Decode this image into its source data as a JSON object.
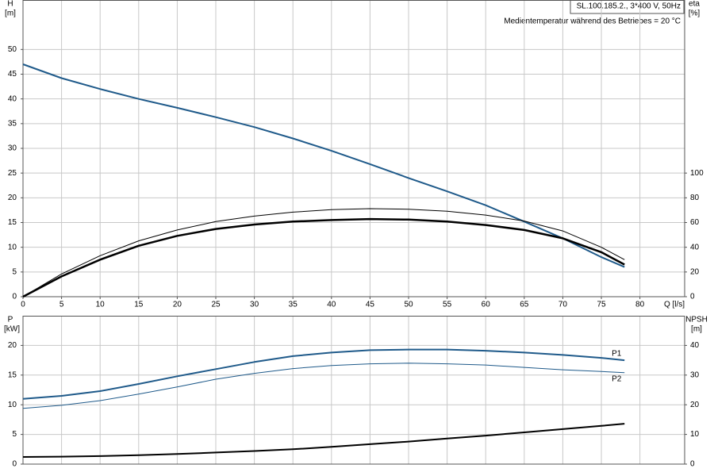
{
  "chart_data": [
    {
      "type": "line",
      "title": "SL.100.185.2., 3*400 V, 50Hz",
      "subtitle": "Medientemperatur während des Betriebes = 20 °C",
      "xlabel": "Q [l/s]",
      "ylabel": "H",
      "yunit": "[m]",
      "y2label": "eta",
      "y2unit": "[%]",
      "x": [
        0,
        5,
        10,
        15,
        20,
        25,
        30,
        35,
        40,
        45,
        50,
        55,
        60,
        65,
        70,
        75,
        78
      ],
      "xlim": [
        0,
        85.8
      ],
      "xticks": [
        0,
        5,
        10,
        15,
        20,
        25,
        30,
        35,
        40,
        45,
        50,
        55,
        60,
        65,
        70,
        75,
        80
      ],
      "ylim": [
        0,
        60
      ],
      "yticks": [
        0,
        5,
        10,
        15,
        20,
        25,
        30,
        35,
        40,
        45,
        50
      ],
      "y2lim": [
        0,
        240
      ],
      "y2ticks": [
        0,
        20,
        40,
        60,
        80,
        100
      ],
      "grid": true,
      "series": [
        {
          "color": "#1f5a8a",
          "line_width": 2,
          "values": [
            47,
            44.2,
            42,
            40,
            38.2,
            36.3,
            34.3,
            32,
            29.5,
            26.8,
            24,
            21.3,
            18.5,
            15.2,
            11.8,
            8,
            6
          ]
        },
        {
          "color": "#000000",
          "line_width": 1,
          "axis": "y2",
          "values": [
            0,
            18.4,
            33.2,
            45.2,
            54,
            60.8,
            65.2,
            68.4,
            70.4,
            71.2,
            70.8,
            69.2,
            66,
            61.2,
            53.2,
            40,
            30
          ]
        },
        {
          "color": "#000000",
          "line_width": 2.5,
          "axis": "y2",
          "values": [
            0,
            16.4,
            30,
            41.2,
            49.2,
            54.8,
            58.4,
            60.8,
            62,
            62.8,
            62.4,
            60.8,
            58,
            54,
            47.2,
            36,
            26
          ]
        }
      ]
    },
    {
      "type": "line",
      "ylabel": "P",
      "yunit": "[kW]",
      "y2label": "NPSH",
      "y2unit": "[m]",
      "x": [
        0,
        5,
        10,
        15,
        20,
        25,
        30,
        35,
        40,
        45,
        50,
        55,
        60,
        65,
        70,
        75,
        78
      ],
      "xlim": [
        0,
        85.8
      ],
      "xticks": [
        0,
        5,
        10,
        15,
        20,
        25,
        30,
        35,
        40,
        45,
        50,
        55,
        60,
        65,
        70,
        75,
        80
      ],
      "ylim": [
        0,
        25
      ],
      "yticks": [
        0,
        5,
        10,
        15,
        20
      ],
      "y2lim": [
        0,
        50
      ],
      "y2ticks": [
        0,
        10,
        20,
        30,
        40
      ],
      "grid": true,
      "series": [
        {
          "name": "P1",
          "color": "#1f5a8a",
          "line_width": 2,
          "values": [
            11,
            11.5,
            12.3,
            13.5,
            14.8,
            16,
            17.2,
            18.2,
            18.8,
            19.2,
            19.3,
            19.3,
            19.1,
            18.8,
            18.4,
            17.9,
            17.5
          ]
        },
        {
          "name": "P2",
          "color": "#1f5a8a",
          "line_width": 1,
          "values": [
            9.4,
            9.9,
            10.7,
            11.8,
            13,
            14.3,
            15.3,
            16.1,
            16.6,
            16.9,
            17.0,
            16.9,
            16.7,
            16.3,
            15.9,
            15.6,
            15.4
          ]
        },
        {
          "color": "#000000",
          "line_width": 2,
          "axis": "y2",
          "values": [
            2.4,
            2.5,
            2.7,
            3,
            3.4,
            3.9,
            4.4,
            5,
            5.8,
            6.7,
            7.6,
            8.6,
            9.6,
            10.7,
            11.8,
            12.9,
            13.6
          ]
        }
      ]
    }
  ]
}
